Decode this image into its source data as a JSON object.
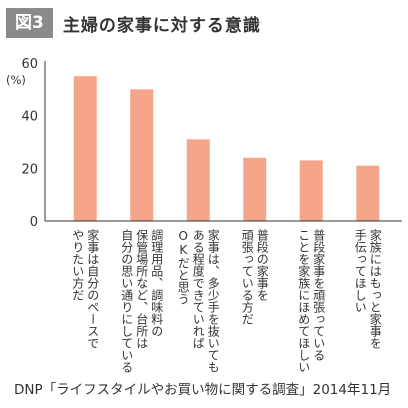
{
  "figure_label": "図3",
  "title": "主婦の家事に対する意識",
  "source": "DNP「ライフスタイルやお買い物に関する調査」2014年11月",
  "colors": {
    "bar": "#f5a58a",
    "badge": "#8a8a8a",
    "axis": "#333333"
  },
  "chart_data": {
    "type": "bar",
    "unit_label": "(%)",
    "ylim": [
      0,
      60
    ],
    "yticks": [
      0,
      20,
      40,
      60
    ],
    "grid": false,
    "categories": [
      "家事は自分のペースでやりたい方だ",
      "調理用品、調味料の保管場所など、台所は自分の思い通りにしている",
      "家事は、多少手を抜いてもある程度できていればOKだと思う",
      "普段の家事を頑張っている方だ",
      "普段家事を頑張っていることを家族にほめてほしい",
      "家族にはもっと家事を手伝ってほしい"
    ],
    "values": [
      55,
      50,
      31,
      24,
      23,
      21
    ]
  }
}
